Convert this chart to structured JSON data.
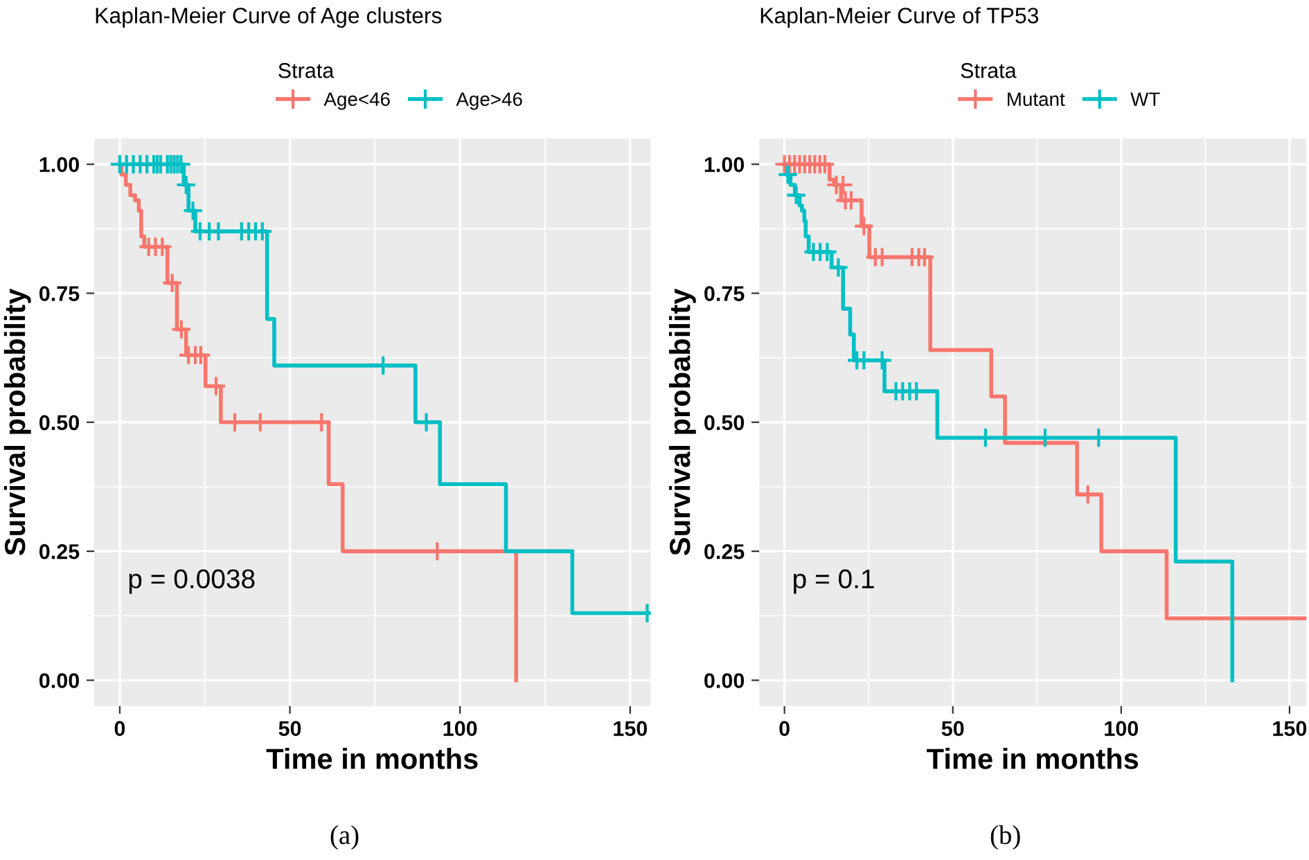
{
  "chart_data": [
    {
      "type": "step",
      "title": "Kaplan-Meier Curve of Age clusters",
      "xlabel": "Time in months",
      "ylabel": "Survival probability",
      "legend_title": "Strata",
      "legend": "top",
      "xlim": [
        -7.5,
        156
      ],
      "xticks": [
        0,
        50,
        100,
        150
      ],
      "ylim": [
        -0.05,
        1.05
      ],
      "yticks": [
        {
          "value": 0,
          "label": "0.00"
        },
        {
          "value": 0.25,
          "label": "0.25"
        },
        {
          "value": 0.5,
          "label": "0.50"
        },
        {
          "value": 0.75,
          "label": "0.75"
        },
        {
          "value": 1,
          "label": "1.00"
        }
      ],
      "grid": true,
      "annotations": [
        "p = 0.0038",
        "(a)"
      ],
      "series": [
        {
          "name": "Age<46",
          "color": "#f8766d",
          "marker": "none",
          "x": [
            0,
            0.5,
            1.8,
            3.1,
            4.5,
            5.6,
            6.3,
            7.2,
            14.0,
            16.8,
            19.5,
            25.2,
            29.7,
            61.4,
            65.5,
            116.5
          ],
          "values": [
            1.0,
            0.98,
            0.96,
            0.94,
            0.93,
            0.91,
            0.86,
            0.84,
            0.77,
            0.68,
            0.63,
            0.57,
            0.5,
            0.38,
            0.25,
            0.0
          ]
        },
        {
          "name": "Age>46",
          "color": "#00bfc4",
          "marker": "none",
          "x": [
            0,
            18.8,
            20.2,
            22.2,
            43.3,
            45.4,
            86.9,
            94.1,
            113.5,
            133.0,
            156
          ],
          "values": [
            1.0,
            0.96,
            0.91,
            0.87,
            0.7,
            0.61,
            0.5,
            0.38,
            0.25,
            0.13,
            0.13
          ]
        },
        {
          "type": "scatter",
          "color": "#f8766d",
          "marker": "cross",
          "x": [
            8.5,
            10.5,
            12.5,
            15.4,
            18.1,
            20.2,
            22.2,
            23.8,
            28.3,
            33.8,
            41.3,
            59.3,
            93.3
          ],
          "values": [
            0.84,
            0.84,
            0.84,
            0.77,
            0.68,
            0.63,
            0.63,
            0.63,
            0.57,
            0.5,
            0.5,
            0.5,
            0.25
          ]
        },
        {
          "type": "scatter",
          "color": "#00bfc4",
          "marker": "cross",
          "x": [
            0,
            2,
            4,
            6,
            8,
            10,
            11,
            12,
            14,
            15,
            16,
            17,
            18,
            19.5,
            21.5,
            23.6,
            26.3,
            29.0,
            35.8,
            37.9,
            39.9,
            41.9,
            77.4,
            90.1,
            155
          ],
          "values": [
            1,
            1,
            1,
            1,
            1,
            1,
            1,
            1,
            1,
            1,
            1,
            1,
            1,
            0.96,
            0.91,
            0.87,
            0.87,
            0.87,
            0.87,
            0.87,
            0.87,
            0.87,
            0.61,
            0.5,
            0.13
          ]
        }
      ]
    },
    {
      "type": "step",
      "title": "Kaplan-Meier Curve of TP53",
      "xlabel": "Time in months",
      "ylabel": "Survival probability",
      "legend_title": "Strata",
      "legend": "top",
      "xlim": [
        -7.5,
        155
      ],
      "xticks": [
        0,
        50,
        100,
        {
          "value": 150,
          "label": "150"
        }
      ],
      "ylim": [
        -0.05,
        1.05
      ],
      "yticks": [
        {
          "value": 0,
          "label": "0.00"
        },
        {
          "value": 0.25,
          "label": "0.25"
        },
        {
          "value": 0.5,
          "label": "0.50"
        },
        {
          "value": 0.75,
          "label": "0.75"
        },
        {
          "value": 1,
          "label": "1.00"
        }
      ],
      "grid": true,
      "annotations": [
        "p = 0.1",
        "(b)"
      ],
      "series": [
        {
          "name": "Mutant",
          "color": "#f8766d",
          "marker": "none",
          "x": [
            0,
            13.4,
            14.7,
            16.8,
            22.9,
            25.2,
            43.3,
            61.4,
            65.5,
            86.9,
            94.1,
            113.5,
            155
          ],
          "values": [
            1.0,
            0.97,
            0.96,
            0.93,
            0.88,
            0.82,
            0.64,
            0.55,
            0.46,
            0.36,
            0.25,
            0.12,
            0.12
          ]
        },
        {
          "name": "WT",
          "color": "#00bfc4",
          "marker": "none",
          "x": [
            0,
            0.5,
            1.8,
            3.1,
            4.5,
            5.2,
            5.9,
            6.3,
            7.2,
            14.0,
            17.4,
            19.5,
            20.6,
            29.7,
            45.4,
            116.2,
            133.0
          ],
          "values": [
            1.0,
            0.98,
            0.96,
            0.94,
            0.92,
            0.91,
            0.89,
            0.86,
            0.83,
            0.8,
            0.72,
            0.67,
            0.62,
            0.56,
            0.47,
            0.23,
            0.0
          ]
        },
        {
          "type": "scatter",
          "color": "#f8766d",
          "marker": "cross",
          "x": [
            0,
            1.5,
            3,
            4.5,
            6,
            7.5,
            9,
            10.5,
            12,
            15.4,
            17.4,
            18.1,
            19.8,
            23.6,
            27.0,
            29.0,
            37.9,
            39.9,
            41.6,
            90.1
          ],
          "values": [
            1,
            1,
            1,
            1,
            1,
            1,
            1,
            1,
            1,
            0.96,
            0.96,
            0.93,
            0.93,
            0.88,
            0.82,
            0.82,
            0.82,
            0.82,
            0.82,
            0.36
          ]
        },
        {
          "type": "scatter",
          "color": "#00bfc4",
          "marker": "cross",
          "x": [
            1.0,
            3.5,
            8.6,
            10.6,
            12.7,
            16.0,
            21.5,
            23.6,
            29.0,
            33.1,
            35.1,
            37.2,
            39.2,
            59.7,
            77.4,
            93.3
          ],
          "values": [
            0.98,
            0.94,
            0.83,
            0.83,
            0.83,
            0.8,
            0.62,
            0.62,
            0.62,
            0.56,
            0.56,
            0.56,
            0.56,
            0.47,
            0.47,
            0.47
          ]
        }
      ]
    }
  ]
}
